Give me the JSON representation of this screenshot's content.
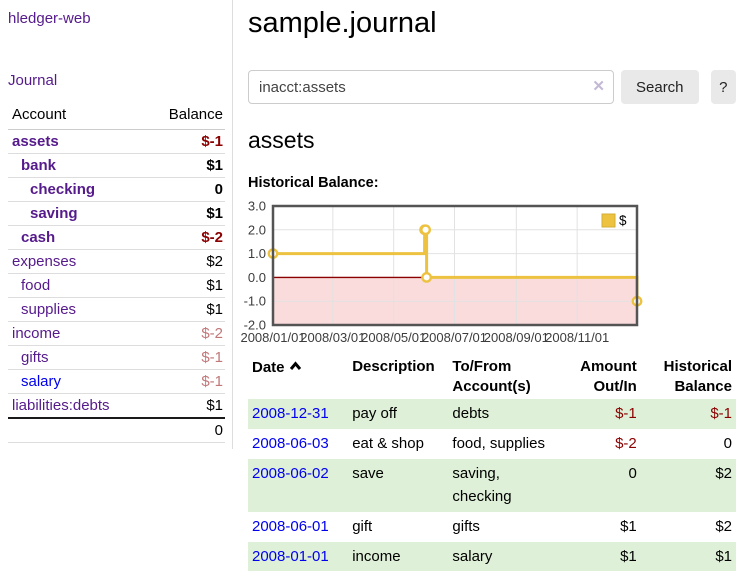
{
  "colors": {
    "link_visited": "#551a8b",
    "link_unvisited": "#0000ee",
    "negative_strong": "#8b0000",
    "negative_soft": "#c17779",
    "row_highlight_green": "#dff0d8",
    "series_gold": "#edc240"
  },
  "sidebar": {
    "app_title": "hledger-web",
    "journal_link": "Journal",
    "accounts_table": {
      "headers": [
        "Account",
        "Balance"
      ],
      "rows": [
        {
          "account": "assets",
          "balance": "$-1",
          "indent": 1,
          "in_query": true,
          "balance_tone": "negative-strong"
        },
        {
          "account": "bank",
          "balance": "$1",
          "indent": 2,
          "in_query": true
        },
        {
          "account": "checking",
          "balance": "0",
          "indent": 3,
          "in_query": true
        },
        {
          "account": "saving",
          "balance": "$1",
          "indent": 3,
          "in_query": true
        },
        {
          "account": "cash",
          "balance": "$-2",
          "indent": 2,
          "in_query": true,
          "balance_tone": "negative-strong"
        },
        {
          "account": "expenses",
          "balance": "$2",
          "indent": 1
        },
        {
          "account": "food",
          "balance": "$1",
          "indent": 2
        },
        {
          "account": "supplies",
          "balance": "$1",
          "indent": 2
        },
        {
          "account": "income",
          "balance": "$-2",
          "indent": 1,
          "balance_tone": "negative-soft"
        },
        {
          "account": "gifts",
          "balance": "$-1",
          "indent": 2,
          "balance_tone": "negative-soft"
        },
        {
          "account": "salary",
          "balance": "$-1",
          "indent": 2,
          "balance_tone": "negative-soft",
          "link_state": "unvisited"
        },
        {
          "account": "liabilities:debts",
          "balance": "$1",
          "indent": 1
        }
      ],
      "total": "0"
    }
  },
  "main": {
    "title": "sample.journal",
    "search": {
      "value": "inacct:assets",
      "clear_icon": "✕",
      "button_label": "Search",
      "help_label": "?"
    },
    "account_heading": "assets",
    "register": {
      "headers": [
        {
          "label": "Date",
          "sorted": "asc"
        },
        {
          "label": "Description"
        },
        {
          "label": "To/From\nAccount(s)"
        },
        {
          "label": "Amount\nOut/In",
          "align": "right"
        },
        {
          "label": "Historical\nBalance",
          "align": "right"
        }
      ],
      "rows": [
        {
          "date": "2008-12-31",
          "description": "pay off",
          "accounts": "debts",
          "amount": "$-1",
          "balance": "$-1",
          "amount_negative": true,
          "balance_negative": true
        },
        {
          "date": "2008-06-03",
          "description": "eat & shop",
          "accounts": "food, supplies",
          "amount": "$-2",
          "balance": "0",
          "amount_negative": true
        },
        {
          "date": "2008-06-02",
          "description": "save",
          "accounts": "saving, checking",
          "amount": "0",
          "balance": "$2"
        },
        {
          "date": "2008-06-01",
          "description": "gift",
          "accounts": "gifts",
          "amount": "$1",
          "balance": "$2"
        },
        {
          "date": "2008-01-01",
          "description": "income",
          "accounts": "salary",
          "amount": "$1",
          "balance": "$1"
        }
      ]
    }
  },
  "chart_data": {
    "type": "line",
    "style": "steps-with-markers",
    "title": "Historical Balance:",
    "series": [
      {
        "name": "$",
        "color": "#edc240",
        "points": [
          [
            "2008-01-01",
            1
          ],
          [
            "2008-06-01",
            2
          ],
          [
            "2008-06-02",
            2
          ],
          [
            "2008-06-03",
            0
          ],
          [
            "2008-12-31",
            -1
          ]
        ]
      }
    ],
    "xrange": [
      "2008-01-01",
      "2008-12-31"
    ],
    "ylim": [
      -2,
      3
    ],
    "yticks": [
      3.0,
      2.0,
      1.0,
      0.0,
      -1.0,
      -2.0
    ],
    "xticks": [
      "2008/01/01",
      "2008/03/01",
      "2008/05/01",
      "2008/07/01",
      "2008/09/01",
      "2008/11/01"
    ],
    "grid": true,
    "zero_line_color": "#8b0000",
    "negative_region_color": "#fbdcdc",
    "legend_position": "top-right"
  }
}
